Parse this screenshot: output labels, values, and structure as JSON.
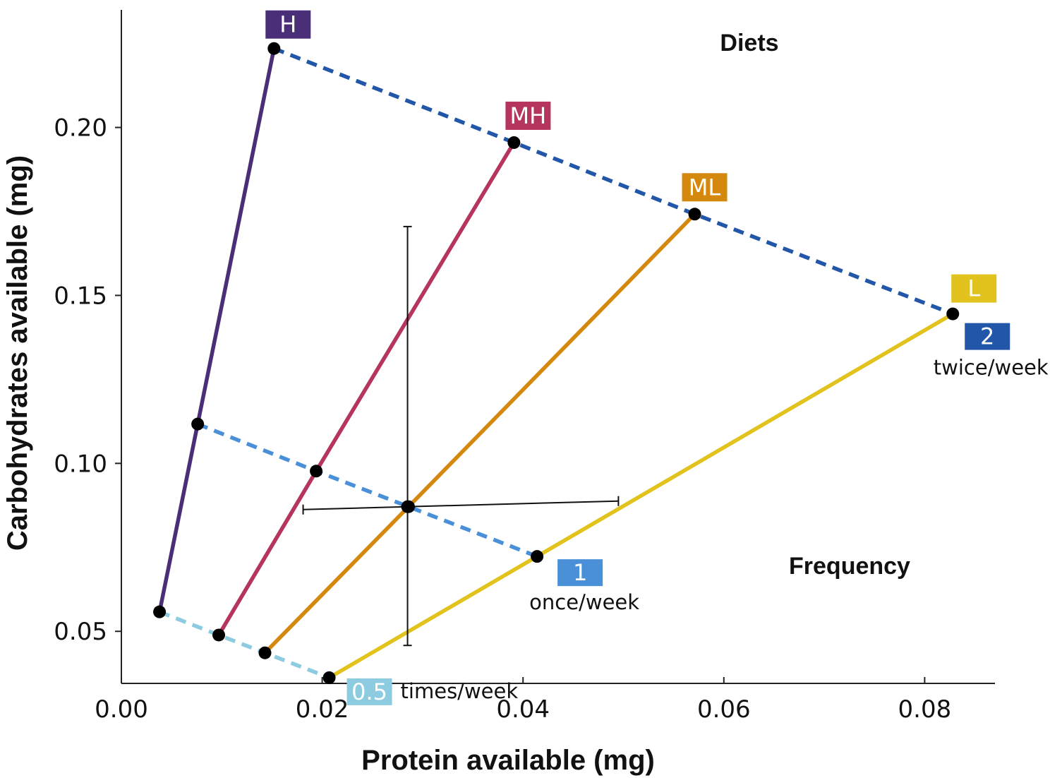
{
  "chart_data": {
    "type": "line",
    "title": "",
    "xlabel": "Protein available (mg)",
    "ylabel": "Carbohydrates available  (mg)",
    "xlim": [
      0.0,
      0.087
    ],
    "ylim": [
      0.0345,
      0.235
    ],
    "x_ticks": [
      "0.00",
      "0.02",
      "0.04",
      "0.06",
      "0.08"
    ],
    "y_ticks": [
      "0.05",
      "0.10",
      "0.15",
      "0.20"
    ],
    "grid": false,
    "section_labels": {
      "diets": "Diets",
      "frequency": "Frequency"
    },
    "diets": [
      {
        "name": "H",
        "color": "#4a2f78",
        "points": [
          {
            "x": 0.0038,
            "y": 0.0558
          },
          {
            "x": 0.0076,
            "y": 0.1117
          },
          {
            "x": 0.0152,
            "y": 0.2235
          }
        ]
      },
      {
        "name": "MH",
        "color": "#b5355d",
        "points": [
          {
            "x": 0.0097,
            "y": 0.0489
          },
          {
            "x": 0.0194,
            "y": 0.0977
          },
          {
            "x": 0.0391,
            "y": 0.1955
          }
        ]
      },
      {
        "name": "ML",
        "color": "#d4880e",
        "points": [
          {
            "x": 0.0143,
            "y": 0.0436
          },
          {
            "x": 0.0286,
            "y": 0.0871
          },
          {
            "x": 0.0571,
            "y": 0.1742
          }
        ]
      },
      {
        "name": "L",
        "color": "#e2c21c",
        "points": [
          {
            "x": 0.0207,
            "y": 0.0362
          },
          {
            "x": 0.0414,
            "y": 0.0723
          },
          {
            "x": 0.0828,
            "y": 0.1445
          }
        ]
      }
    ],
    "frequencies": [
      {
        "badge": "0.5",
        "label": "times/week",
        "color": "#8ccbe0",
        "point_index": 0
      },
      {
        "badge": "1",
        "label": "once/week",
        "color": "#4a90d9",
        "point_index": 1
      },
      {
        "badge": "2",
        "label": "twice/week",
        "color": "#2156a8",
        "point_index": 2
      }
    ],
    "mean_point": {
      "x": 0.0285,
      "y": 0.0871,
      "x_error": [
        0.0181,
        0.0495
      ],
      "y_error": [
        0.0458,
        0.1705
      ]
    }
  }
}
